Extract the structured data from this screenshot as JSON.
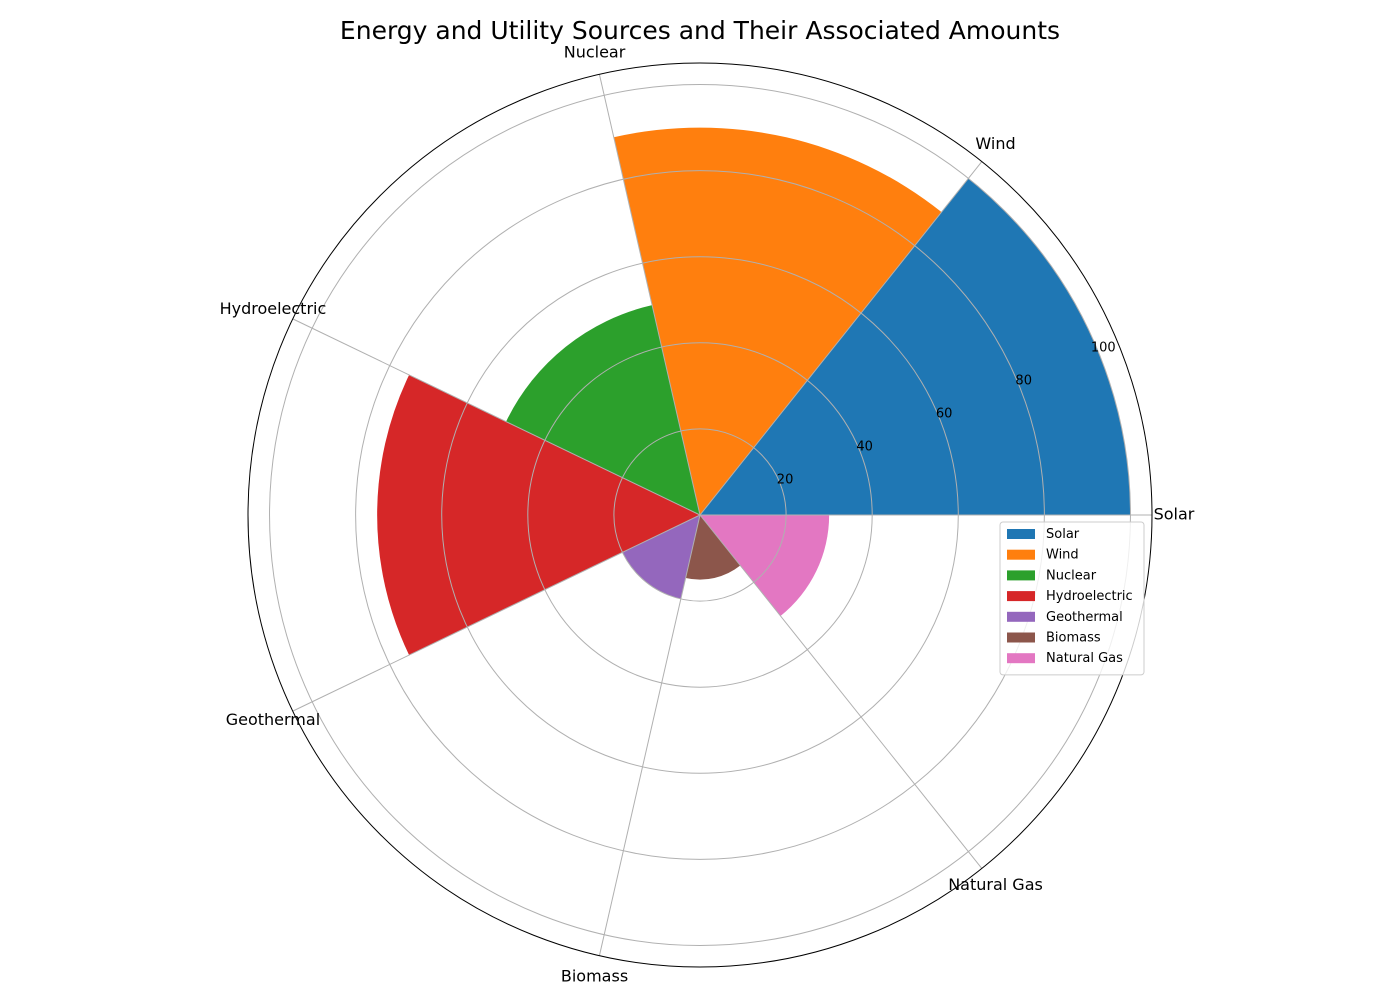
{
  "chart_data": {
    "type": "polar-bar",
    "title": "Energy and Utility Sources and Their Associated Amounts",
    "categories": [
      "Solar",
      "Wind",
      "Nuclear",
      "Hydroelectric",
      "Geothermal",
      "Biomass",
      "Natural Gas"
    ],
    "values": [
      100,
      90,
      50,
      75,
      20,
      15,
      30
    ],
    "colors": [
      "#1f77b4",
      "#ff7f0e",
      "#2ca02c",
      "#d62728",
      "#9467bd",
      "#8c564b",
      "#e377c2"
    ],
    "radial_ticks": [
      "20",
      "40",
      "60",
      "80",
      "100"
    ],
    "radial_tick_values": [
      20,
      40,
      60,
      80,
      100
    ],
    "rlim": [
      0,
      105
    ],
    "grid": true,
    "legend_placement": "right",
    "legend_entries": [
      "Solar",
      "Wind",
      "Nuclear",
      "Hydroelectric",
      "Geothermal",
      "Biomass",
      "Natural Gas"
    ]
  }
}
